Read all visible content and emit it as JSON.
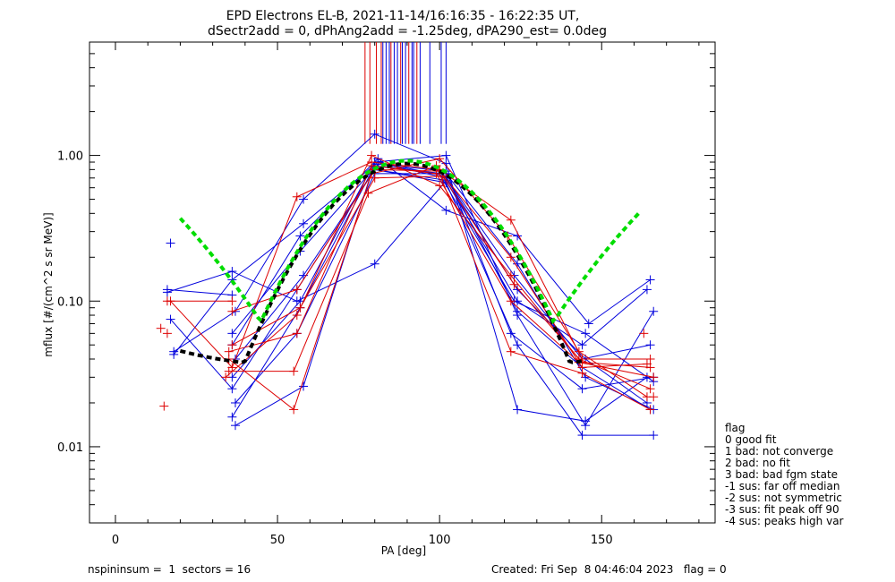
{
  "chart_data": {
    "type": "scatter",
    "title_lines": [
      "EPD Electrons EL-B, 2021-11-14/16:16:35 - 16:22:35 UT,",
      "dSectr2add = 0, dPhAng2add = -1.25deg, dPA290_est=   0.0deg"
    ],
    "xlabel": "PA [deg]",
    "ylabel": "mflux [#/(cm^2 s sr MeV)]",
    "xlim": [
      -8,
      185
    ],
    "ylim": [
      0.003,
      6.0
    ],
    "y_scale": "log",
    "x_ticks": [
      0,
      50,
      100,
      150
    ],
    "y_ticks": [
      {
        "value": 0.01,
        "label": "0.01"
      },
      {
        "value": 0.1,
        "label": "0.10"
      },
      {
        "value": 1.0,
        "label": "1.00"
      }
    ],
    "colors": {
      "red": "#dd0000",
      "blue": "#0000dd",
      "black": "#000000",
      "green": "#00dd00"
    },
    "series": [
      {
        "color": "blue",
        "points": [
          [
            16,
            0.12
          ],
          [
            36,
            0.11
          ]
        ]
      },
      {
        "color": "blue",
        "points": [
          [
            16,
            0.115
          ],
          [
            36,
            0.16
          ],
          [
            56,
            0.1
          ],
          [
            80,
            0.18
          ],
          [
            102,
            0.67
          ],
          [
            124,
            0.1
          ],
          [
            144,
            0.05
          ],
          [
            164,
            0.12
          ]
        ]
      },
      {
        "color": "blue",
        "points": [
          [
            17,
            0.075
          ],
          [
            36,
            0.025
          ],
          [
            56,
            0.12
          ],
          [
            80,
            0.8
          ],
          [
            102,
            0.65
          ],
          [
            124,
            0.05
          ],
          [
            144,
            0.012
          ],
          [
            166,
            0.012
          ]
        ]
      },
      {
        "color": "blue",
        "points": [
          [
            18,
            0.045
          ],
          [
            37,
            0.085
          ],
          [
            58,
            0.5
          ],
          [
            80,
            1.4
          ],
          [
            102,
            0.88
          ],
          [
            124,
            0.018
          ],
          [
            145,
            0.015
          ],
          [
            164,
            0.03
          ]
        ]
      },
      {
        "color": "blue",
        "points": [
          [
            18,
            0.043
          ],
          [
            36,
            0.14
          ],
          [
            58,
            0.34
          ],
          [
            81,
            0.9
          ],
          [
            102,
            0.72
          ],
          [
            124,
            0.085
          ],
          [
            144,
            0.035
          ],
          [
            165,
            0.018
          ]
        ]
      },
      {
        "color": "blue",
        "points": [
          [
            36,
            0.05
          ],
          [
            57,
            0.28
          ],
          [
            81,
            0.95
          ],
          [
            102,
            0.42
          ],
          [
            124,
            0.28
          ],
          [
            146,
            0.07
          ],
          [
            165,
            0.14
          ]
        ]
      },
      {
        "color": "blue",
        "points": [
          [
            36,
            0.016
          ],
          [
            57,
            0.09
          ],
          [
            80,
            0.85
          ],
          [
            101,
            0.75
          ],
          [
            124,
            0.12
          ],
          [
            145,
            0.04
          ],
          [
            164,
            0.02
          ]
        ]
      },
      {
        "color": "blue",
        "points": [
          [
            37,
            0.02
          ],
          [
            56,
            0.06
          ],
          [
            80,
            0.75
          ],
          [
            102,
            0.75
          ],
          [
            124,
            0.18
          ],
          [
            145,
            0.03
          ],
          [
            166,
            0.018
          ]
        ]
      },
      {
        "color": "blue",
        "points": [
          [
            37,
            0.014
          ],
          [
            58,
            0.026
          ],
          [
            80,
            0.9
          ],
          [
            102,
            1.0
          ],
          [
            124,
            0.08
          ],
          [
            145,
            0.014
          ],
          [
            166,
            0.085
          ]
        ]
      },
      {
        "color": "blue",
        "points": [
          [
            36,
            0.03
          ],
          [
            57,
            0.1
          ],
          [
            80,
            0.9
          ],
          [
            102,
            0.7
          ],
          [
            123,
            0.15
          ],
          [
            144,
            0.04
          ],
          [
            165,
            0.05
          ]
        ]
      },
      {
        "color": "blue",
        "points": [
          [
            36,
            0.06
          ],
          [
            57,
            0.22
          ],
          [
            81,
            0.87
          ],
          [
            102,
            0.78
          ],
          [
            122,
            0.06
          ],
          [
            144,
            0.025
          ],
          [
            166,
            0.03
          ]
        ]
      },
      {
        "color": "blue",
        "points": [
          [
            37,
            0.04
          ],
          [
            58,
            0.15
          ],
          [
            80,
            0.8
          ],
          [
            101,
            0.68
          ],
          [
            123,
            0.1
          ],
          [
            145,
            0.06
          ],
          [
            166,
            0.028
          ]
        ]
      },
      {
        "color": "red",
        "points": [
          [
            16,
            0.1
          ],
          [
            36,
            0.1
          ]
        ]
      },
      {
        "color": "red",
        "points": [
          [
            17,
            0.1
          ],
          [
            36,
            0.035
          ],
          [
            56,
            0.52
          ],
          [
            79,
            0.9
          ],
          [
            100,
            0.8
          ],
          [
            122,
            0.36
          ],
          [
            144,
            0.04
          ],
          [
            165,
            0.04
          ]
        ]
      },
      {
        "color": "red",
        "points": [
          [
            35,
            0.033
          ],
          [
            55,
            0.033
          ],
          [
            78,
            0.55
          ],
          [
            99,
            0.85
          ],
          [
            122,
            0.045
          ],
          [
            144,
            0.032
          ],
          [
            165,
            0.018
          ]
        ]
      },
      {
        "color": "red",
        "points": [
          [
            35,
            0.04
          ],
          [
            55,
            0.018
          ],
          [
            79,
            0.75
          ],
          [
            100,
            0.95
          ],
          [
            121,
            0.28
          ],
          [
            143,
            0.045
          ],
          [
            164,
            0.022
          ]
        ]
      },
      {
        "color": "red",
        "points": [
          [
            35,
            0.045
          ],
          [
            56,
            0.06
          ],
          [
            79,
            0.85
          ],
          [
            99,
            0.75
          ],
          [
            122,
            0.1
          ],
          [
            143,
            0.038
          ],
          [
            166,
            0.03
          ]
        ]
      },
      {
        "color": "red",
        "points": [
          [
            36,
            0.085
          ],
          [
            56,
            0.12
          ],
          [
            80,
            0.8
          ],
          [
            100,
            0.78
          ],
          [
            122,
            0.2
          ],
          [
            144,
            0.035
          ],
          [
            164,
            0.037
          ]
        ]
      },
      {
        "color": "red",
        "points": [
          [
            34,
            0.03
          ],
          [
            56,
            0.08
          ],
          [
            79,
            1.0
          ],
          [
            100,
            0.62
          ],
          [
            122,
            0.15
          ],
          [
            143,
            0.04
          ],
          [
            165,
            0.025
          ]
        ]
      },
      {
        "color": "red",
        "points": [
          [
            36,
            0.05
          ],
          [
            57,
            0.09
          ],
          [
            80,
            0.7
          ],
          [
            101,
            0.72
          ],
          [
            123,
            0.13
          ],
          [
            144,
            0.038
          ],
          [
            165,
            0.035
          ]
        ]
      }
    ],
    "isolated_points": [
      {
        "color": "red",
        "x": 14,
        "y": 0.065
      },
      {
        "color": "red",
        "x": 16,
        "y": 0.06
      },
      {
        "color": "red",
        "x": 15,
        "y": 0.019
      },
      {
        "color": "blue",
        "x": 17,
        "y": 0.25
      },
      {
        "color": "red",
        "x": 166,
        "y": 0.022
      },
      {
        "color": "red",
        "x": 163,
        "y": 0.06
      }
    ],
    "fit_curves": [
      {
        "color": "black",
        "style": "dashed-thick",
        "x_range": [
          20,
          144
        ],
        "peak_x": 90,
        "peak_y": 0.88,
        "sigma": 20,
        "quad_a": 1.75e-07,
        "floor": 0.035
      },
      {
        "color": "green",
        "style": "dashed-thick",
        "x_range": [
          20,
          162
        ],
        "peak_x": 90,
        "peak_y": 0.92,
        "sigma": 20,
        "quad_a": 6e-06,
        "floor": 0.0098
      }
    ],
    "vertical_lines": [
      {
        "color": "red",
        "x": [
          77,
          78.5,
          80.5,
          82,
          85,
          88,
          90.5,
          93
        ]
      },
      {
        "color": "blue",
        "x": [
          82.5,
          83.5,
          84.5,
          86,
          87,
          88.5,
          89.5,
          91.5,
          92,
          94,
          97,
          100.5,
          102
        ]
      }
    ],
    "legend": {
      "placement": "right-bottom",
      "heading": "flag",
      "items": [
        " 0 good fit",
        " 1 bad: not converge",
        " 2 bad: no fit",
        " 3 bad: bad fgm state",
        "-1 sus: far off median",
        "-2 sus: not symmetric",
        "-3 sus: fit peak off 90",
        "-4 sus: peaks high var"
      ]
    }
  },
  "footer": {
    "left": "nspininsum =  1  sectors = 16",
    "right": "Created: Fri Sep  8 04:46:04 2023   flag = 0"
  }
}
